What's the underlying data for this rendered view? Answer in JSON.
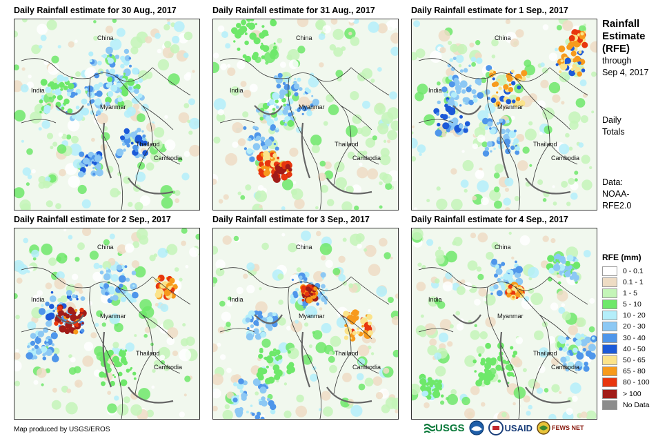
{
  "panels": [
    {
      "title": "Daily Rainfall estimate for 30 Aug., 2017"
    },
    {
      "title": "Daily Rainfall estimate for 31 Aug., 2017"
    },
    {
      "title": "Daily Rainfall estimate for 1 Sep., 2017"
    },
    {
      "title": "Daily Rainfall estimate for 2 Sep., 2017"
    },
    {
      "title": "Daily Rainfall estimate for 3 Sep., 2017"
    },
    {
      "title": "Daily Rainfall estimate for 4 Sep., 2017"
    }
  ],
  "country_labels": {
    "china": "China",
    "india": "India",
    "myanmar": "Myanmar",
    "thailand": "Thailand",
    "cambodia": "Cambodia"
  },
  "sidebar": {
    "title_line1": "Rainfall",
    "title_line2": "Estimate",
    "title_line3": "(RFE)",
    "through_line1": "through",
    "through_line2": "Sep 4, 2017",
    "daily_line1": "Daily",
    "daily_line2": "Totals",
    "data_line1": "Data:",
    "data_line2": "NOAA-",
    "data_line3": "RFE2.0"
  },
  "legend": {
    "title": "RFE (mm)",
    "items": [
      {
        "label": "0 - 0.1",
        "color": "#ffffff"
      },
      {
        "label": "0.1 - 1",
        "color": "#eedcc4"
      },
      {
        "label": "1 - 5",
        "color": "#c4f5b8"
      },
      {
        "label": "5 - 10",
        "color": "#6ee86a"
      },
      {
        "label": "10 - 20",
        "color": "#b4eefa"
      },
      {
        "label": "20 - 30",
        "color": "#8cc8f4"
      },
      {
        "label": "30 - 40",
        "color": "#4f96ea"
      },
      {
        "label": "40 - 50",
        "color": "#1c5ad8"
      },
      {
        "label": "50 - 65",
        "color": "#fbe38a"
      },
      {
        "label": "65 - 80",
        "color": "#f79a1c"
      },
      {
        "label": "80 - 100",
        "color": "#e8360e"
      },
      {
        "label": "> 100",
        "color": "#a11c18"
      },
      {
        "label": "No Data",
        "color": "#8c8c8c"
      }
    ]
  },
  "credit": "Map produced by USGS/EROS",
  "logos": {
    "usgs": "USGS",
    "usaid": "USAID",
    "fewsnet": "FEWS NET"
  }
}
